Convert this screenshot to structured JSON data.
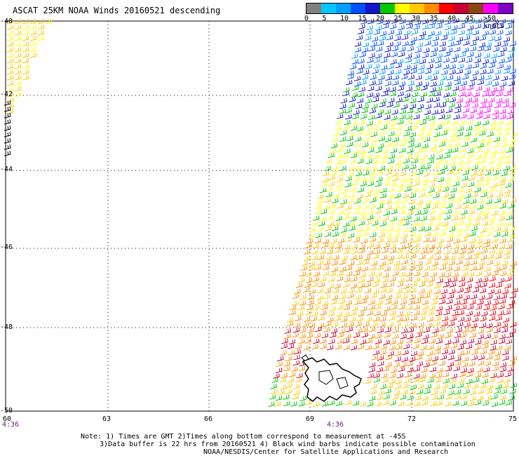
{
  "title": "ASCAT 25KM NOAA Winds 20160521 descending",
  "colorbar": {
    "colors": [
      "#808080",
      "#00c8ff",
      "#00a0ff",
      "#0050ff",
      "#1414c8",
      "#00c800",
      "#ffff00",
      "#ffc800",
      "#ff8c00",
      "#ff0000",
      "#c80032",
      "#8b4513",
      "#ff00ff",
      "#8000c8"
    ],
    "labels": [
      "0",
      "5",
      "10",
      "15",
      "20",
      "25",
      "30",
      "35",
      "40",
      "45",
      ">50 knots"
    ]
  },
  "lat_labels": [
    "-40",
    "-42",
    "-44",
    "-46",
    "-48",
    "-50"
  ],
  "lon_labels": [
    "60",
    "63",
    "66",
    "69",
    "72",
    "75"
  ],
  "time_labels": [
    "4:36",
    "4:36"
  ],
  "notes": [
    "Note: 1) Times are GMT 2)Times along bottom correspond to measurement at -45S",
    "3)Data buffer is 22 hrs from 20160521 4) Black wind barbs indicate possible contamination",
    "NOAA/NESDIS/Center for Satellite Applications and Research"
  ]
}
